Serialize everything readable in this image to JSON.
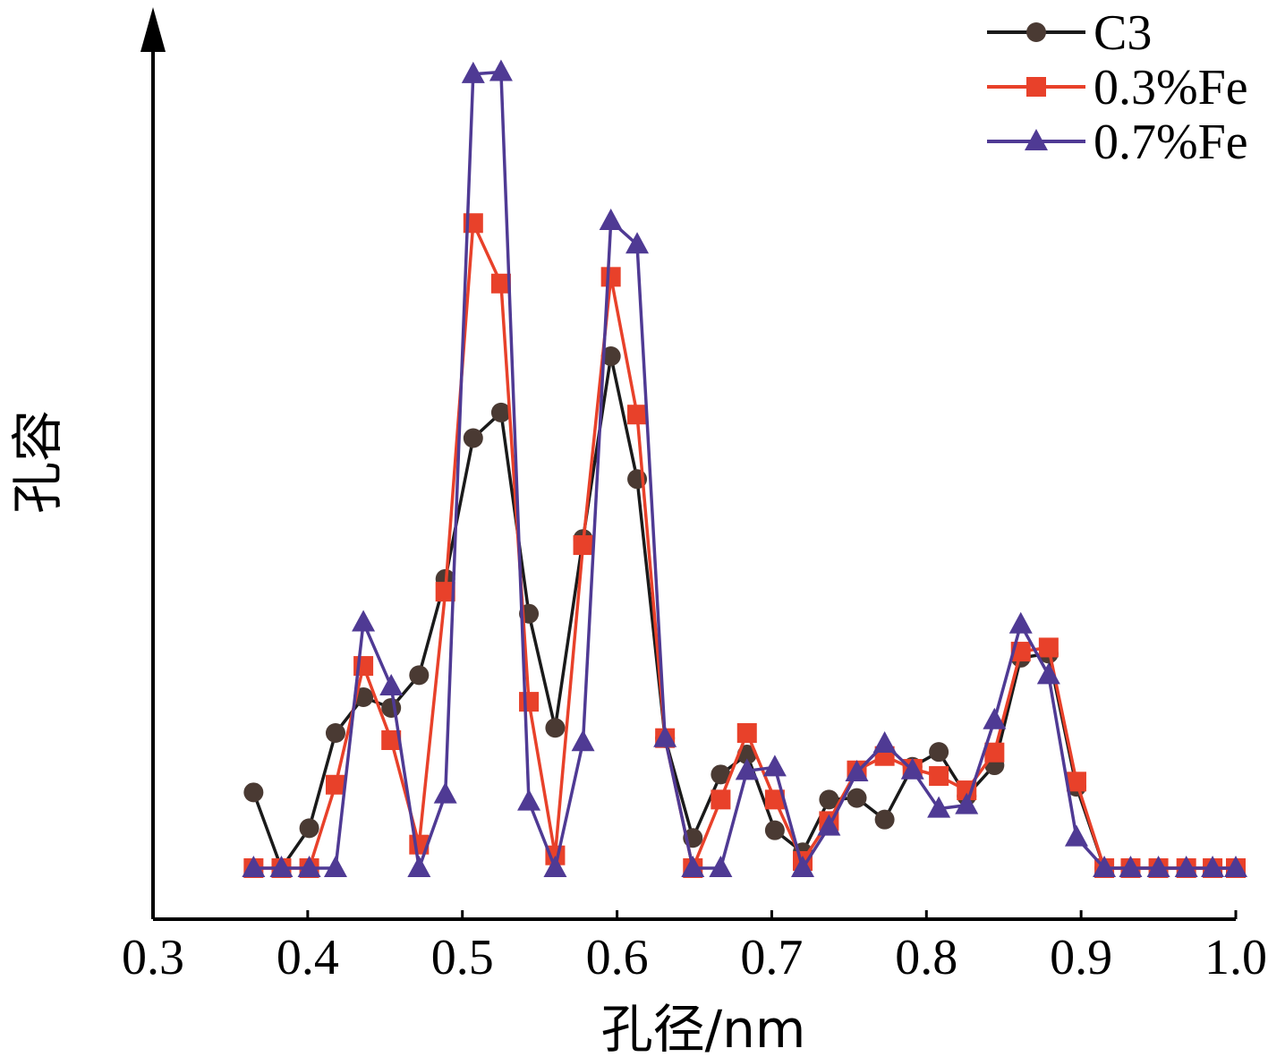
{
  "chart_data": {
    "type": "line",
    "title": "",
    "xlabel": "孔径/nm",
    "ylabel": "孔容",
    "xlim": [
      0.3,
      1.0
    ],
    "ylim": [
      0,
      1
    ],
    "xticks": [
      "0.3",
      "0.4",
      "0.5",
      "0.6",
      "0.7",
      "0.8",
      "0.9",
      "1.0"
    ],
    "xtick_values": [
      0.3,
      0.4,
      0.5,
      0.6,
      0.7,
      0.8,
      0.9,
      1.0
    ],
    "y_tick_labels_shown": false,
    "grid": false,
    "legend_position": "top-right",
    "series": [
      {
        "name": "C3",
        "color": "#1a1a1a",
        "marker_color": "#4a3a33",
        "marker": "circle",
        "x": [
          0.365,
          0.383,
          0.401,
          0.418,
          0.436,
          0.454,
          0.472,
          0.489,
          0.507,
          0.525,
          0.543,
          0.56,
          0.578,
          0.596,
          0.613,
          0.631,
          0.649,
          0.667,
          0.684,
          0.702,
          0.72,
          0.737,
          0.755,
          0.773,
          0.791,
          0.808,
          0.826,
          0.844,
          0.861,
          0.879,
          0.897,
          0.915,
          0.932,
          0.95,
          0.968,
          0.985,
          1.0
        ],
        "values": [
          0.148,
          0.0,
          0.078,
          0.264,
          0.334,
          0.313,
          0.377,
          0.565,
          0.84,
          0.89,
          0.497,
          0.274,
          0.643,
          1.0,
          0.76,
          0.254,
          0.059,
          0.183,
          0.222,
          0.074,
          0.031,
          0.134,
          0.137,
          0.095,
          0.198,
          0.227,
          0.141,
          0.201,
          0.411,
          0.419,
          0.159,
          0.0,
          0.0,
          0.0,
          0.0,
          0.0,
          0.0
        ]
      },
      {
        "name": "0.3%Fe",
        "color": "#e8412a",
        "marker_color": "#e8412a",
        "marker": "square",
        "x": [
          0.365,
          0.383,
          0.401,
          0.418,
          0.436,
          0.454,
          0.472,
          0.489,
          0.507,
          0.525,
          0.543,
          0.56,
          0.578,
          0.596,
          0.613,
          0.631,
          0.649,
          0.667,
          0.684,
          0.702,
          0.72,
          0.737,
          0.755,
          0.773,
          0.791,
          0.808,
          0.826,
          0.844,
          0.861,
          0.879,
          0.897,
          0.915,
          0.932,
          0.95,
          0.968,
          0.985,
          1.0
        ],
        "values": [
          0.0,
          0.0,
          0.0,
          0.163,
          0.395,
          0.25,
          0.046,
          0.54,
          1.26,
          1.142,
          0.325,
          0.025,
          0.631,
          1.155,
          0.886,
          0.254,
          0.0,
          0.134,
          0.264,
          0.134,
          0.014,
          0.092,
          0.191,
          0.219,
          0.194,
          0.18,
          0.152,
          0.226,
          0.423,
          0.431,
          0.169,
          0.0,
          0.0,
          0.0,
          0.0,
          0.0,
          0.0
        ]
      },
      {
        "name": "0.7%Fe",
        "color": "#4f3a94",
        "marker_color": "#4f3a94",
        "marker": "triangle",
        "x": [
          0.365,
          0.383,
          0.401,
          0.418,
          0.436,
          0.454,
          0.472,
          0.489,
          0.507,
          0.525,
          0.543,
          0.56,
          0.578,
          0.596,
          0.613,
          0.631,
          0.649,
          0.667,
          0.684,
          0.702,
          0.72,
          0.737,
          0.755,
          0.773,
          0.791,
          0.808,
          0.826,
          0.844,
          0.861,
          0.879,
          0.897,
          0.915,
          0.932,
          0.95,
          0.968,
          0.985,
          1.0
        ],
        "values": [
          0.0,
          0.0,
          0.0,
          0.0,
          0.48,
          0.355,
          0.0,
          0.144,
          1.551,
          1.555,
          0.13,
          0.0,
          0.246,
          1.264,
          1.218,
          0.254,
          0.0,
          0.0,
          0.19,
          0.197,
          0.0,
          0.081,
          0.187,
          0.243,
          0.191,
          0.116,
          0.123,
          0.289,
          0.476,
          0.377,
          0.06,
          0.0,
          0.0,
          0.0,
          0.0,
          0.0,
          0.0
        ]
      }
    ]
  }
}
